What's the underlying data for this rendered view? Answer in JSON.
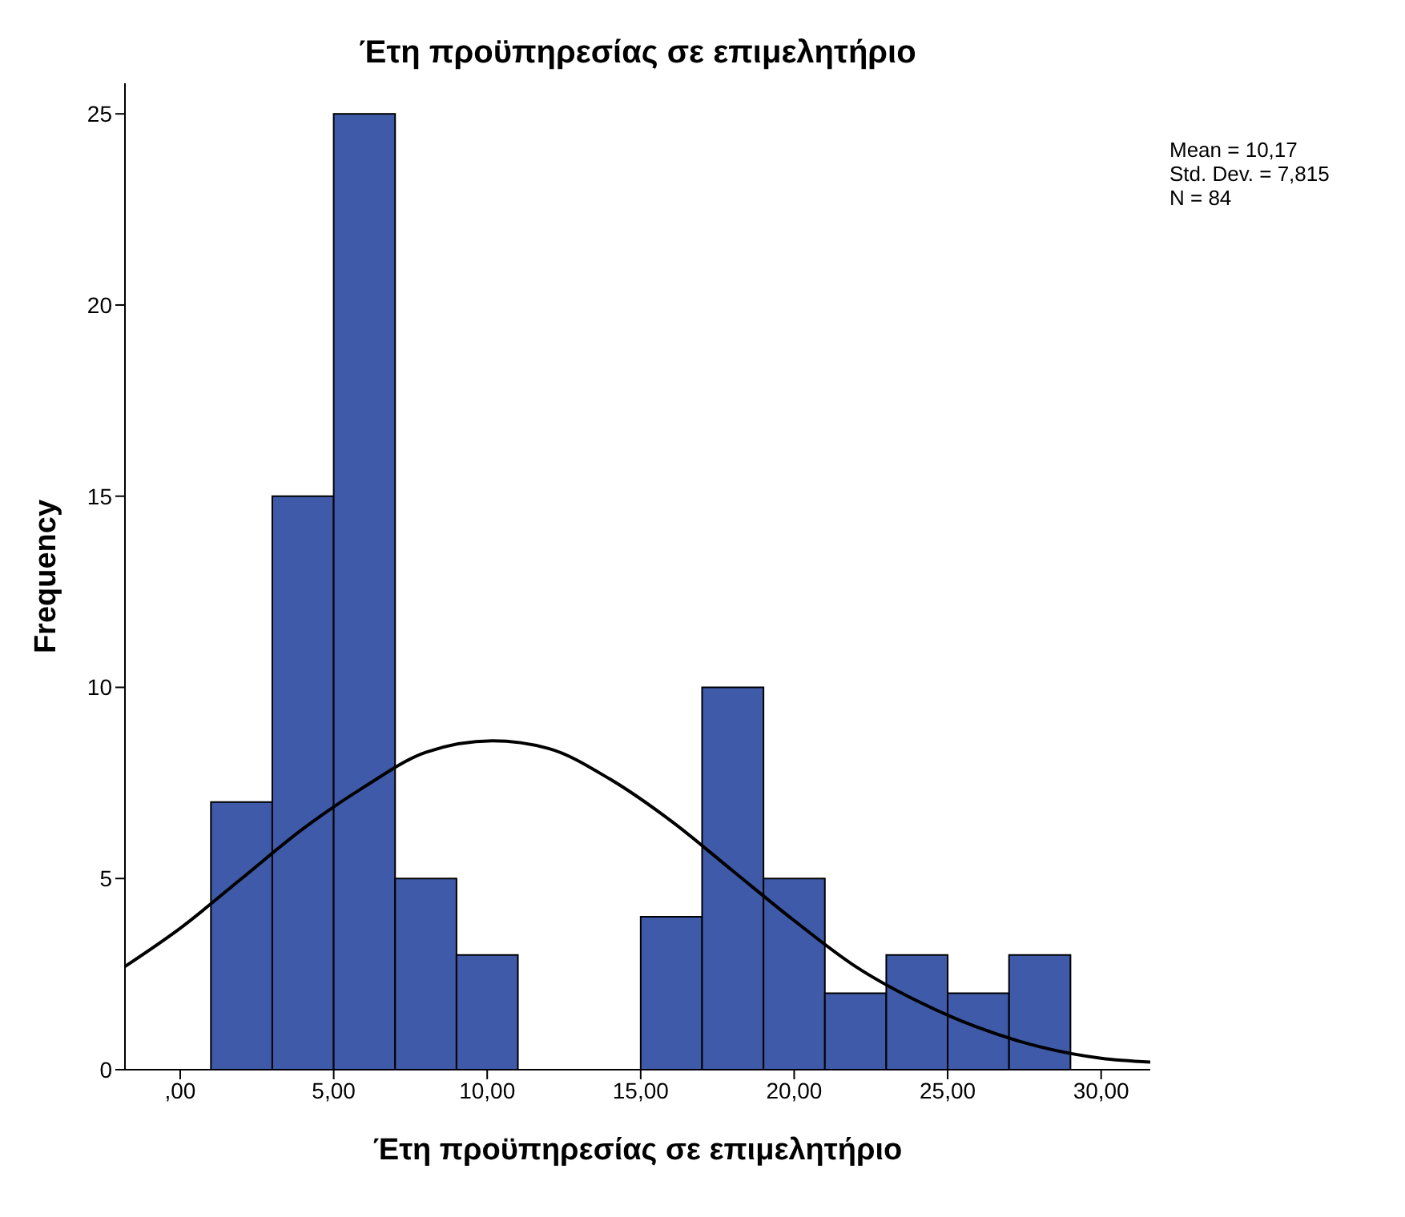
{
  "chart_data": {
    "type": "histogram",
    "title": "Έτη προϋπηρεσίας σε επιμελητήριο",
    "xlabel": "Έτη προϋπηρεσίας σε επιμελητήριο",
    "ylabel": "Frequency",
    "bins": [
      1,
      3,
      5,
      7,
      9,
      11,
      13,
      15,
      17,
      19,
      21,
      23,
      25,
      27,
      29
    ],
    "values": [
      7,
      15,
      25,
      5,
      3,
      0,
      0,
      4,
      10,
      5,
      2,
      3,
      2,
      3
    ],
    "color": "#3f5aa8",
    "series": [
      {
        "type": "line",
        "color": "#000000",
        "x": [
          -1.8,
          0,
          2,
          4,
          6,
          8,
          10.17,
          12,
          14,
          16,
          18,
          20,
          22,
          24,
          26,
          28,
          30,
          31.6
        ],
        "values": [
          2.7,
          3.7,
          5.0,
          6.3,
          7.4,
          8.3,
          8.6,
          8.4,
          7.6,
          6.5,
          5.2,
          3.9,
          2.7,
          1.8,
          1.1,
          0.6,
          0.3,
          0.2
        ]
      }
    ],
    "xlim": [
      -1.8,
      31.6
    ],
    "xticks": [
      {
        "value": 0,
        "label": ",00"
      },
      {
        "value": 5,
        "label": "5,00"
      },
      {
        "value": 10,
        "label": "10,00"
      },
      {
        "value": 15,
        "label": "15,00"
      },
      {
        "value": 20,
        "label": "20,00"
      },
      {
        "value": 25,
        "label": "25,00"
      },
      {
        "value": 30,
        "label": "30,00"
      }
    ],
    "ylim": [
      0,
      25.8
    ],
    "yticks": [
      0,
      5,
      10,
      15,
      20,
      25
    ],
    "annotations": [
      "Mean = 10,17",
      "Std. Dev. = 7,815",
      "N = 84"
    ],
    "marker": "none"
  }
}
